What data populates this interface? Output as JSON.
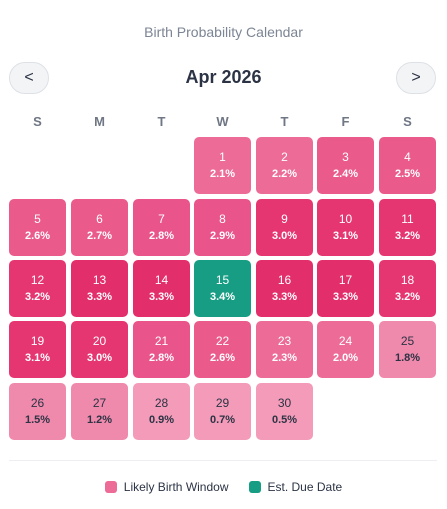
{
  "title": "Birth Probability Calendar",
  "month_label": "Apr 2026",
  "nav": {
    "prev_label": "<",
    "next_label": ">"
  },
  "weekdays": [
    "S",
    "M",
    "T",
    "W",
    "T",
    "F",
    "S"
  ],
  "start_offset": 3,
  "days": [
    {
      "day": "1",
      "prob": "2.1%",
      "color": "#ec6b97"
    },
    {
      "day": "2",
      "prob": "2.2%",
      "color": "#ec6b97"
    },
    {
      "day": "3",
      "prob": "2.4%",
      "color": "#ea5a8b"
    },
    {
      "day": "4",
      "prob": "2.5%",
      "color": "#ea5a8b"
    },
    {
      "day": "5",
      "prob": "2.6%",
      "color": "#ea5a8b"
    },
    {
      "day": "6",
      "prob": "2.7%",
      "color": "#ea5a8b"
    },
    {
      "day": "7",
      "prob": "2.8%",
      "color": "#e9548a"
    },
    {
      "day": "8",
      "prob": "2.9%",
      "color": "#e9548a"
    },
    {
      "day": "9",
      "prob": "3.0%",
      "color": "#e53672"
    },
    {
      "day": "10",
      "prob": "3.1%",
      "color": "#e53672"
    },
    {
      "day": "11",
      "prob": "3.2%",
      "color": "#e53672"
    },
    {
      "day": "12",
      "prob": "3.2%",
      "color": "#e53672"
    },
    {
      "day": "13",
      "prob": "3.3%",
      "color": "#e32e6c"
    },
    {
      "day": "14",
      "prob": "3.3%",
      "color": "#e32e6c"
    },
    {
      "day": "15",
      "prob": "3.4%",
      "color": "#189d85"
    },
    {
      "day": "16",
      "prob": "3.3%",
      "color": "#e32e6c"
    },
    {
      "day": "17",
      "prob": "3.3%",
      "color": "#e32e6c"
    },
    {
      "day": "18",
      "prob": "3.2%",
      "color": "#e53672"
    },
    {
      "day": "19",
      "prob": "3.1%",
      "color": "#e53672"
    },
    {
      "day": "20",
      "prob": "3.0%",
      "color": "#e53672"
    },
    {
      "day": "21",
      "prob": "2.8%",
      "color": "#e9548a"
    },
    {
      "day": "22",
      "prob": "2.6%",
      "color": "#ea5a8b"
    },
    {
      "day": "23",
      "prob": "2.3%",
      "color": "#ec6b97"
    },
    {
      "day": "24",
      "prob": "2.0%",
      "color": "#ec6b97"
    },
    {
      "day": "25",
      "prob": "1.8%",
      "color": "#f08aac"
    },
    {
      "day": "26",
      "prob": "1.5%",
      "color": "#f08aac"
    },
    {
      "day": "27",
      "prob": "1.2%",
      "color": "#f08aac"
    },
    {
      "day": "28",
      "prob": "0.9%",
      "color": "#f39bb8"
    },
    {
      "day": "29",
      "prob": "0.7%",
      "color": "#f39bb8"
    },
    {
      "day": "30",
      "prob": "0.5%",
      "color": "#f39bb8"
    }
  ],
  "legend": {
    "birth_window_label": "Likely Birth Window",
    "birth_window_color": "#ec6b97",
    "due_date_label": "Est. Due Date",
    "due_date_color": "#189d85"
  }
}
